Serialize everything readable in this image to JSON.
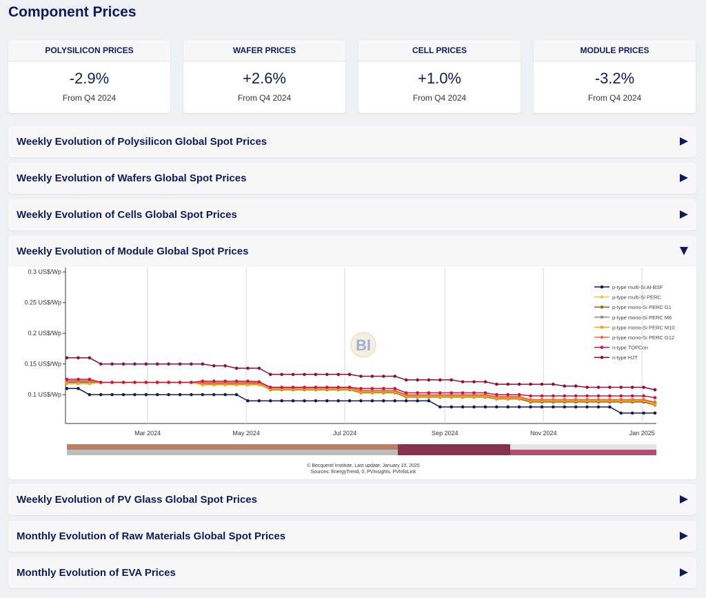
{
  "header": {
    "title": "Component Prices"
  },
  "cards": [
    {
      "title": "POLYSILICON PRICES",
      "value": "-2.9%",
      "sub": "From Q4 2024"
    },
    {
      "title": "WAFER PRICES",
      "value": "+2.6%",
      "sub": "From Q4 2024"
    },
    {
      "title": "CELL PRICES",
      "value": "+1.0%",
      "sub": "From Q4 2024"
    },
    {
      "title": "MODULE PRICES",
      "value": "-3.2%",
      "sub": "From Q4 2024"
    }
  ],
  "sections": [
    "Weekly Evolution of Polysilicon Global Spot Prices",
    "Weekly Evolution of Wafers Global Spot Prices",
    "Weekly Evolution of Cells Global Spot Prices",
    "Weekly Evolution of Module Global Spot Prices",
    "Weekly Evolution of PV Glass Global Spot Prices",
    "Monthly Evolution of Raw Materials Global Spot Prices",
    "Monthly Evolution of EVA Prices"
  ],
  "chart_data": {
    "type": "line",
    "credits": [
      "© Becquerel Institute. Last update: January 10, 2025",
      "Sources: EnergyTrend, 0, PVInsights, PVInfoLink"
    ],
    "x": [
      "2024-01-11",
      "2024-01-18",
      "2024-01-25",
      "2024-02-01",
      "2024-02-08",
      "2024-02-15",
      "2024-02-22",
      "2024-02-29",
      "2024-03-07",
      "2024-03-14",
      "2024-03-21",
      "2024-03-28",
      "2024-04-04",
      "2024-04-11",
      "2024-04-18",
      "2024-04-25",
      "2024-05-02",
      "2024-05-09",
      "2024-05-16",
      "2024-05-23",
      "2024-05-30",
      "2024-06-06",
      "2024-06-13",
      "2024-06-20",
      "2024-06-27",
      "2024-07-04",
      "2024-07-11",
      "2024-07-18",
      "2024-07-25",
      "2024-08-01",
      "2024-08-08",
      "2024-08-15",
      "2024-08-22",
      "2024-08-29",
      "2024-09-05",
      "2024-09-12",
      "2024-09-19",
      "2024-09-26",
      "2024-10-03",
      "2024-10-10",
      "2024-10-17",
      "2024-10-24",
      "2024-10-31",
      "2024-11-07",
      "2024-11-14",
      "2024-11-21",
      "2024-11-28",
      "2024-12-05",
      "2024-12-12",
      "2024-12-19",
      "2024-12-26",
      "2025-01-02",
      "2025-01-09"
    ],
    "xlim": [
      "2024-01-11",
      "2025-01-09"
    ],
    "xticks": [
      {
        "value": "2024-03-01",
        "label": "Mar 2024"
      },
      {
        "value": "2024-05-01",
        "label": "May 2024"
      },
      {
        "value": "2024-07-01",
        "label": "Jul 2024"
      },
      {
        "value": "2024-09-01",
        "label": "Sep 2024"
      },
      {
        "value": "2024-11-01",
        "label": "Nov 2024"
      },
      {
        "value": "2025-01-01",
        "label": "Jan 2025"
      }
    ],
    "ylim": [
      0.053,
      0.307
    ],
    "yticks": [
      {
        "value": 0.1,
        "label": "0.1 US$/Wp"
      },
      {
        "value": 0.15,
        "label": "0.15 US$/Wp"
      },
      {
        "value": 0.2,
        "label": "0.2 US$/Wp"
      },
      {
        "value": 0.25,
        "label": "0.25 US$/Wp"
      },
      {
        "value": 0.3,
        "label": "0.3 US$/Wp"
      }
    ],
    "grid": true,
    "legend": "top-right",
    "series": [
      {
        "name": "p-type multi-Si Al-BSF",
        "color": "#101a5c",
        "values": [
          0.11,
          0.11,
          0.1,
          0.1,
          0.1,
          0.1,
          0.1,
          0.1,
          0.1,
          0.1,
          0.1,
          0.1,
          0.1,
          0.1,
          0.1,
          0.1,
          0.09,
          0.09,
          0.09,
          0.09,
          0.09,
          0.09,
          0.09,
          0.09,
          0.09,
          0.09,
          0.09,
          0.09,
          0.09,
          0.09,
          0.09,
          0.09,
          0.09,
          0.08,
          0.08,
          0.08,
          0.08,
          0.08,
          0.08,
          0.08,
          0.08,
          0.08,
          0.08,
          0.08,
          0.08,
          0.08,
          0.08,
          0.08,
          0.08,
          0.07,
          0.07,
          0.07,
          0.07
        ]
      },
      {
        "name": "p-type multi-Si PERC",
        "color": "#f5c04a",
        "values": [
          0.122,
          0.122,
          0.122,
          0.12,
          0.12,
          0.12,
          0.12,
          0.12,
          0.12,
          0.12,
          0.12,
          0.12,
          0.118,
          0.118,
          0.118,
          0.118,
          0.118,
          0.118,
          0.11,
          0.11,
          0.11,
          0.11,
          0.11,
          0.11,
          0.11,
          0.11,
          0.105,
          0.105,
          0.105,
          0.105,
          0.098,
          0.098,
          0.098,
          0.098,
          0.098,
          0.098,
          0.098,
          0.098,
          0.095,
          0.095,
          0.095,
          0.09,
          0.09,
          0.09,
          0.09,
          0.09,
          0.09,
          0.09,
          0.09,
          0.09,
          0.09,
          0.09,
          0.085
        ]
      },
      {
        "name": "p-type mono-Si PERC G1",
        "color": "#8b6a12",
        "values": [
          0.12,
          0.12,
          0.12,
          0.12,
          0.12,
          0.12,
          0.12,
          0.12,
          0.12,
          0.12,
          0.12,
          0.12,
          0.117,
          0.117,
          0.117,
          0.117,
          0.117,
          0.117,
          0.108,
          0.108,
          0.108,
          0.108,
          0.108,
          0.108,
          0.108,
          0.108,
          0.103,
          0.103,
          0.103,
          0.103,
          0.096,
          0.096,
          0.096,
          0.096,
          0.096,
          0.096,
          0.096,
          0.096,
          0.093,
          0.093,
          0.093,
          0.088,
          0.088,
          0.088,
          0.088,
          0.088,
          0.088,
          0.088,
          0.088,
          0.088,
          0.088,
          0.088,
          0.083
        ]
      },
      {
        "name": "p-type mono-Si PERC M6",
        "color": "#8c8c8c",
        "values": [
          0.121,
          0.121,
          0.121,
          0.12,
          0.12,
          0.12,
          0.12,
          0.12,
          0.12,
          0.12,
          0.12,
          0.12,
          0.119,
          0.119,
          0.119,
          0.119,
          0.119,
          0.119,
          0.111,
          0.111,
          0.111,
          0.111,
          0.111,
          0.111,
          0.111,
          0.111,
          0.106,
          0.106,
          0.106,
          0.106,
          0.099,
          0.099,
          0.099,
          0.099,
          0.099,
          0.099,
          0.099,
          0.099,
          0.096,
          0.096,
          0.096,
          0.091,
          0.091,
          0.091,
          0.091,
          0.091,
          0.091,
          0.091,
          0.091,
          0.091,
          0.091,
          0.091,
          0.087
        ]
      },
      {
        "name": "p-type mono-Si PERC M10",
        "color": "#ffa20a",
        "values": [
          0.118,
          0.118,
          0.118,
          0.12,
          0.12,
          0.12,
          0.12,
          0.12,
          0.12,
          0.12,
          0.12,
          0.12,
          0.116,
          0.116,
          0.116,
          0.116,
          0.116,
          0.116,
          0.109,
          0.109,
          0.109,
          0.109,
          0.109,
          0.109,
          0.109,
          0.109,
          0.104,
          0.104,
          0.104,
          0.104,
          0.097,
          0.097,
          0.097,
          0.097,
          0.097,
          0.097,
          0.097,
          0.097,
          0.094,
          0.094,
          0.094,
          0.09,
          0.09,
          0.09,
          0.09,
          0.09,
          0.09,
          0.09,
          0.09,
          0.09,
          0.09,
          0.09,
          0.084
        ]
      },
      {
        "name": "p-type mono-Si PERC G12",
        "color": "#f26b3a",
        "values": [
          0.123,
          0.123,
          0.123,
          0.12,
          0.12,
          0.12,
          0.12,
          0.12,
          0.12,
          0.12,
          0.12,
          0.12,
          0.12,
          0.12,
          0.12,
          0.12,
          0.12,
          0.12,
          0.112,
          0.112,
          0.112,
          0.112,
          0.112,
          0.112,
          0.112,
          0.112,
          0.107,
          0.107,
          0.107,
          0.107,
          0.1,
          0.1,
          0.1,
          0.1,
          0.1,
          0.1,
          0.1,
          0.1,
          0.097,
          0.097,
          0.097,
          0.092,
          0.092,
          0.092,
          0.092,
          0.092,
          0.092,
          0.092,
          0.092,
          0.092,
          0.092,
          0.092,
          0.088
        ]
      },
      {
        "name": "n-type TOPCon",
        "color": "#d4123c",
        "values": [
          0.125,
          0.125,
          0.125,
          0.12,
          0.12,
          0.12,
          0.12,
          0.12,
          0.12,
          0.12,
          0.12,
          0.12,
          0.122,
          0.122,
          0.122,
          0.122,
          0.122,
          0.121,
          0.112,
          0.112,
          0.112,
          0.112,
          0.112,
          0.112,
          0.112,
          0.112,
          0.11,
          0.11,
          0.11,
          0.11,
          0.103,
          0.103,
          0.103,
          0.103,
          0.103,
          0.103,
          0.103,
          0.103,
          0.1,
          0.1,
          0.1,
          0.098,
          0.098,
          0.098,
          0.098,
          0.098,
          0.098,
          0.098,
          0.098,
          0.098,
          0.098,
          0.098,
          0.095
        ]
      },
      {
        "name": "n-type HJT",
        "color": "#8e0d3c",
        "values": [
          0.16,
          0.16,
          0.16,
          0.15,
          0.15,
          0.15,
          0.15,
          0.15,
          0.15,
          0.15,
          0.15,
          0.15,
          0.15,
          0.147,
          0.147,
          0.143,
          0.143,
          0.143,
          0.133,
          0.133,
          0.133,
          0.133,
          0.133,
          0.133,
          0.133,
          0.133,
          0.13,
          0.13,
          0.13,
          0.13,
          0.124,
          0.124,
          0.124,
          0.124,
          0.124,
          0.121,
          0.121,
          0.121,
          0.117,
          0.117,
          0.117,
          0.117,
          0.117,
          0.117,
          0.114,
          0.114,
          0.112,
          0.112,
          0.112,
          0.112,
          0.112,
          0.112,
          0.108
        ]
      }
    ]
  }
}
